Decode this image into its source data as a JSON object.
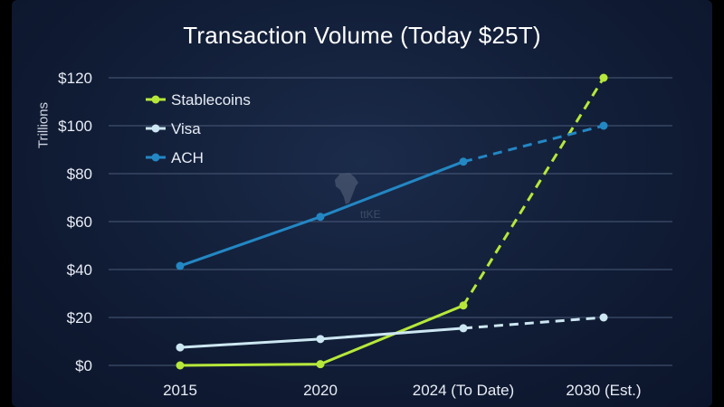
{
  "chart_data": {
    "type": "line",
    "title": "Transaction Volume (Today $25T)",
    "xlabel": "",
    "ylabel": "Trillions",
    "categories": [
      "2015",
      "2020",
      "2024 (To Date)",
      "2030 (Est.)"
    ],
    "yticks": [
      "$0",
      "$20",
      "$40",
      "$60",
      "$80",
      "$100",
      "$120"
    ],
    "ylim": [
      0,
      120
    ],
    "grid": true,
    "legend_position": "top-left",
    "projection_style": "dashed from 2024 (To Date) to 2030 (Est.)",
    "series": [
      {
        "name": "Stablecoins",
        "color": "#b6e83a",
        "values": [
          0,
          0.5,
          25,
          120
        ]
      },
      {
        "name": "Visa",
        "color": "#cde7f2",
        "values": [
          7.5,
          11,
          15.5,
          20
        ]
      },
      {
        "name": "ACH",
        "color": "#2387c4",
        "values": [
          41.5,
          62,
          85,
          100
        ]
      }
    ]
  },
  "watermark_text": "ttKE"
}
